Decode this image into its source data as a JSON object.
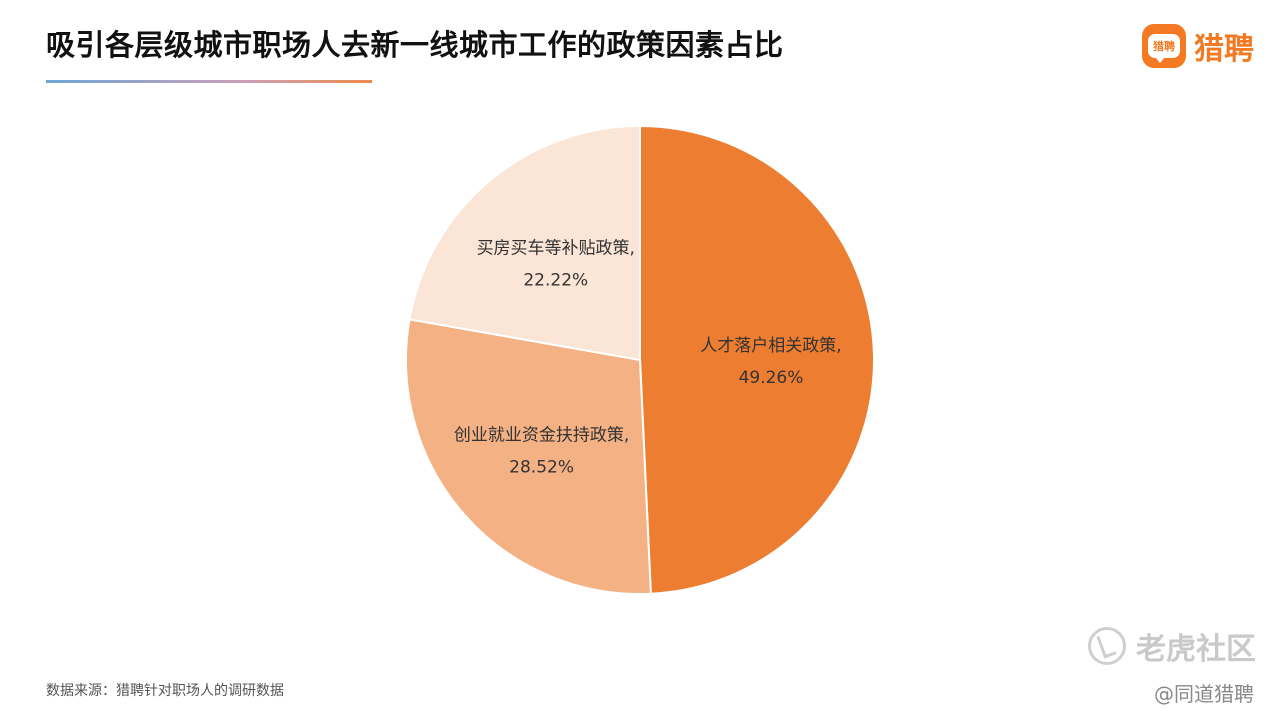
{
  "header": {
    "title": "吸引各层级城市职场人去新一线城市工作的政策因素占比",
    "brand_name": "猎聘",
    "brand_logo_text": "猎聘"
  },
  "chart_data": {
    "type": "pie",
    "title": "吸引各层级城市职场人去新一线城市工作的政策因素占比",
    "slices": [
      {
        "label": "人才落户相关政策",
        "value": 49.26,
        "display": "49.26%",
        "color": "#ed7d31"
      },
      {
        "label": "创业就业资金扶持政策",
        "value": 28.52,
        "display": "28.52%",
        "color": "#f4b183"
      },
      {
        "label": "买房买车等补贴政策",
        "value": 22.22,
        "display": "22.22%",
        "color": "#fbe5d6"
      }
    ]
  },
  "footer": {
    "source": "数据来源：猎聘针对职场人的调研数据",
    "watermark": "老虎社区",
    "credit": "@同道猎聘"
  }
}
